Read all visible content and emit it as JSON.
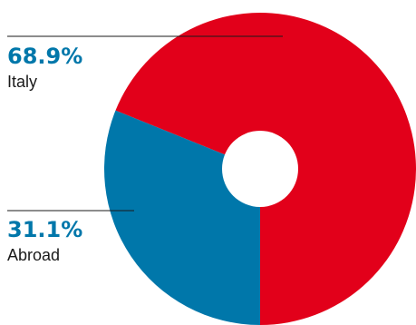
{
  "chart_data": {
    "type": "pie",
    "categories": [
      "Italy",
      "Abroad"
    ],
    "values": [
      68.9,
      31.1
    ],
    "value_labels": [
      "68.9%",
      "31.1%"
    ],
    "colors": [
      "#e2001a",
      "#0077aa"
    ],
    "label_color": "#0077aa",
    "donut": true,
    "title": "",
    "legend": "none"
  }
}
